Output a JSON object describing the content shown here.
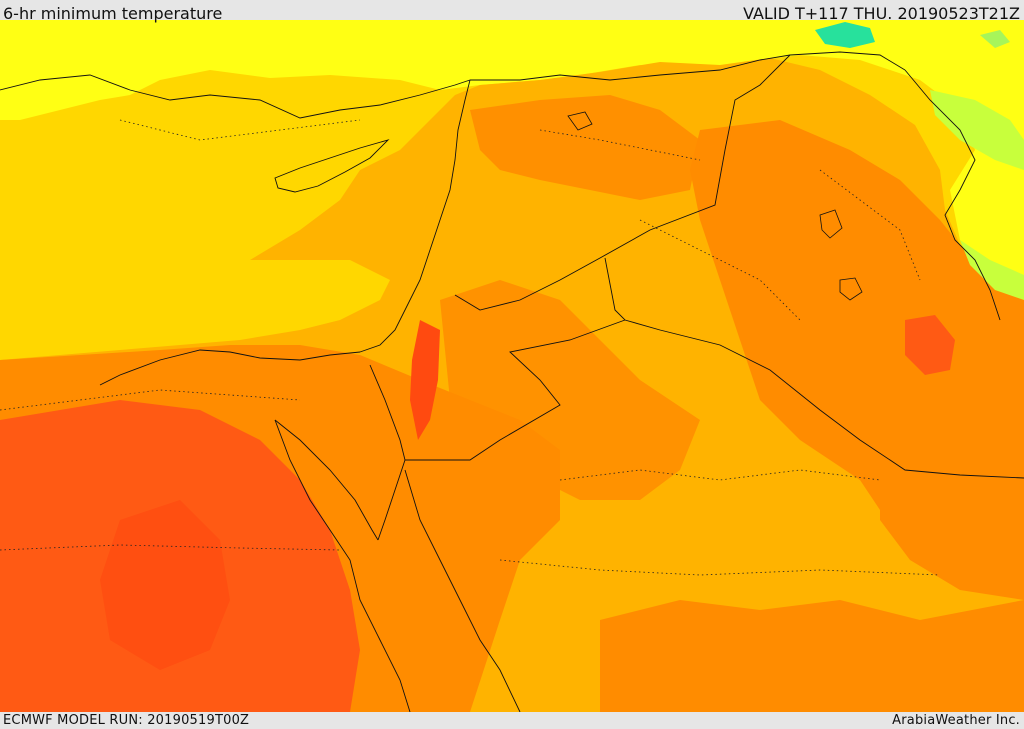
{
  "header": {
    "title": "6-hr minimum temperature",
    "valid": "VALID T+117 THU. 20190523T21Z"
  },
  "footer": {
    "model_run": "ECMWF MODEL RUN: 20190519T00Z",
    "credit": "ArabiaWeather Inc."
  },
  "colors": {
    "cool_yellow": "#ffff14",
    "yellow": "#ffd700",
    "light_orange": "#ffb300",
    "orange": "#ff8c00",
    "red_orange": "#ff5a14",
    "green": "#a7f55a",
    "cyan": "#27e19c",
    "border": "#111111"
  }
}
